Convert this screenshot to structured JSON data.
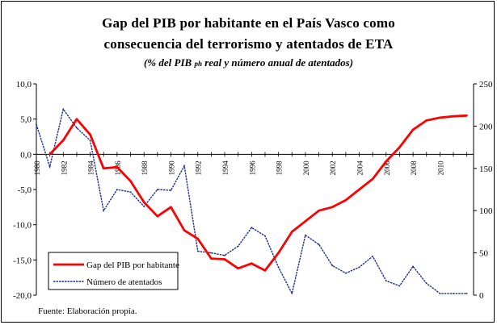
{
  "chart_data": {
    "type": "line",
    "title_line1": "Gap del PIB por habitante en el País Vasco como",
    "title_line2": "consecuencia del terrorismo y atentados de ETA",
    "subtitle_pre": "(% del PIB ",
    "subtitle_sub": "ph",
    "subtitle_post": " real y número anual de atentados)",
    "source": "Fuente: Elaboración propia.",
    "x_ticks": [
      "1980",
      "1982",
      "1984",
      "1986",
      "1988",
      "1990",
      "1992",
      "1994",
      "1996",
      "1998",
      "2000",
      "2002",
      "2004",
      "2006",
      "2008",
      "2010"
    ],
    "y_left": {
      "min": -20,
      "max": 10,
      "ticks": [
        "10,0",
        "5,0",
        "0,0",
        "-5,0",
        "-10,0",
        "-15,0",
        "-20,0"
      ]
    },
    "y_right": {
      "min": 0,
      "max": 250,
      "ticks": [
        "250",
        "200",
        "150",
        "100",
        "50",
        "0"
      ]
    },
    "series": [
      {
        "name": "Gap del PIB por habitante",
        "axis": "left",
        "color": "#ff0000",
        "x": [
          1981,
          1982,
          1983,
          1984,
          1985,
          1986,
          1987,
          1988,
          1989,
          1990,
          1991,
          1992,
          1993,
          1994,
          1995,
          1996,
          1997,
          1998,
          1999,
          2000,
          2001,
          2002,
          2003,
          2004,
          2005,
          2006,
          2007,
          2008,
          2009,
          2010,
          2011,
          2012
        ],
        "values": [
          0.0,
          2.0,
          5.0,
          2.8,
          -2.0,
          -1.8,
          -3.8,
          -6.8,
          -8.8,
          -7.5,
          -10.8,
          -12.0,
          -14.8,
          -14.9,
          -16.2,
          -15.5,
          -16.5,
          -14.0,
          -11.0,
          -9.5,
          -8.0,
          -7.5,
          -6.5,
          -5.0,
          -3.5,
          -1.0,
          1.0,
          3.5,
          4.8,
          5.2,
          5.4,
          5.5
        ]
      },
      {
        "name": "Número de atentados",
        "axis": "right",
        "color": "#1c2f8f",
        "x": [
          1980,
          1981,
          1982,
          1983,
          1984,
          1985,
          1986,
          1987,
          1988,
          1989,
          1990,
          1991,
          1992,
          1993,
          1994,
          1995,
          1996,
          1997,
          1998,
          1999,
          2000,
          2001,
          2002,
          2003,
          2004,
          2005,
          2006,
          2007,
          2008,
          2009,
          2010,
          2011,
          2012
        ],
        "values": [
          202,
          152,
          220,
          198,
          183,
          100,
          125,
          122,
          105,
          125,
          124,
          153,
          52,
          50,
          47,
          58,
          80,
          70,
          33,
          2,
          71,
          60,
          35,
          26,
          33,
          46,
          17,
          11,
          34,
          14,
          2,
          2,
          2
        ]
      }
    ]
  }
}
